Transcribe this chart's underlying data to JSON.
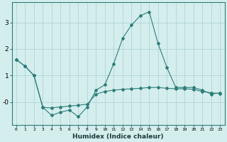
{
  "xlabel": "Humidex (Indice chaleur)",
  "x": [
    0,
    1,
    2,
    3,
    4,
    5,
    6,
    7,
    8,
    9,
    10,
    11,
    12,
    13,
    14,
    15,
    16,
    17,
    18,
    19,
    20,
    21,
    22,
    23
  ],
  "line1": [
    1.6,
    1.35,
    1.0,
    -0.2,
    -0.5,
    -0.38,
    -0.3,
    -0.55,
    -0.18,
    0.45,
    0.65,
    1.45,
    2.4,
    2.9,
    3.25,
    3.4,
    2.2,
    1.3,
    0.55,
    0.55,
    0.55,
    0.45,
    0.3,
    0.35
  ],
  "line2": [
    1.6,
    1.35,
    1.0,
    -0.2,
    -0.22,
    -0.18,
    -0.15,
    -0.12,
    -0.08,
    0.3,
    0.4,
    0.45,
    0.48,
    0.5,
    0.52,
    0.55,
    0.55,
    0.52,
    0.5,
    0.5,
    0.48,
    0.4,
    0.35,
    0.32
  ],
  "color": "#2d7d7a",
  "bg_color": "#d4eeed",
  "grid_color": "#aed6d4",
  "ylim": [
    -0.85,
    3.75
  ],
  "figsize": [
    3.2,
    2.0
  ],
  "dpi": 100
}
